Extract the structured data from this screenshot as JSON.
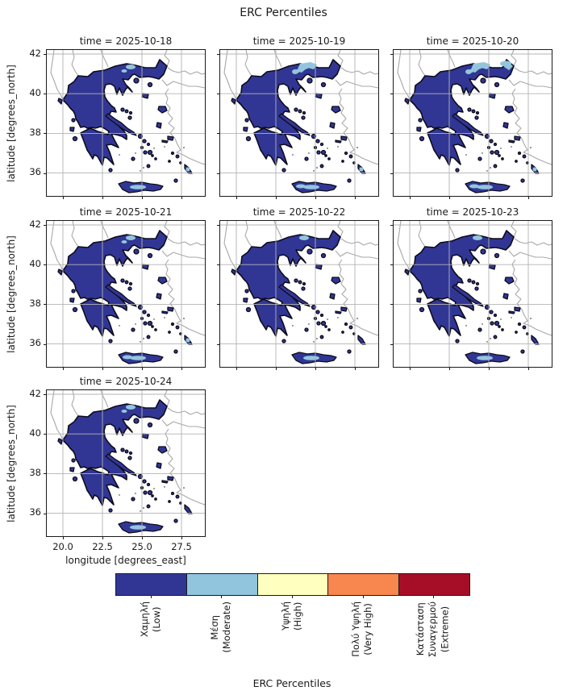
{
  "figure": {
    "title": "ERC Percentiles"
  },
  "axes": {
    "ylabel": "latitude [degrees_north]",
    "xlabel": "longitude [degrees_east]",
    "lat_ticks": [
      "42",
      "40",
      "38",
      "36"
    ],
    "lon_ticks": [
      "20.0",
      "22.5",
      "25.0",
      "27.5"
    ]
  },
  "subplots": [
    {
      "title": "time = 2025-10-18"
    },
    {
      "title": "time = 2025-10-19"
    },
    {
      "title": "time = 2025-10-20"
    },
    {
      "title": "time = 2025-10-21"
    },
    {
      "title": "time = 2025-10-22"
    },
    {
      "title": "time = 2025-10-23"
    },
    {
      "title": "time = 2025-10-24"
    }
  ],
  "colorbar": {
    "label": "ERC Percentiles",
    "classes": [
      {
        "label": "Χαμηλή\n(Low)",
        "color": "#313695"
      },
      {
        "label": "Μέση\n(Moderate)",
        "color": "#90c5dd"
      },
      {
        "label": "Υψηλή\n(High)",
        "color": "#ffffbf"
      },
      {
        "label": "Πολύ Υψηλή\n(Very High)",
        "color": "#f8864f"
      },
      {
        "label": "Κατάσταση\nΣυναγερμού\n(Extreme)",
        "color": "#a50e26"
      }
    ]
  },
  "chart_data": {
    "type": "heatmap",
    "subtype": "categorical_choropleth_map_facets",
    "region": "Greece",
    "title": "ERC Percentiles",
    "facet_variable": "time",
    "facets": [
      "2025-10-18",
      "2025-10-19",
      "2025-10-20",
      "2025-10-21",
      "2025-10-22",
      "2025-10-23",
      "2025-10-24"
    ],
    "grid_layout": {
      "rows": 3,
      "cols": 3,
      "used_panels": 7
    },
    "x": {
      "label": "longitude [degrees_east]",
      "ticks": [
        20.0,
        22.5,
        25.0,
        27.5
      ],
      "range": [
        18.98,
        28.98
      ]
    },
    "y": {
      "label": "latitude [degrees_north]",
      "ticks": [
        42,
        40,
        38,
        36
      ],
      "range": [
        34.85,
        42.2
      ]
    },
    "grid": true,
    "legend": {
      "title": "ERC Percentiles",
      "position": "bottom-horizontal-colorbar",
      "categories": [
        "Χαμηλή (Low)",
        "Μέση (Moderate)",
        "Υψηλή (High)",
        "Πολύ Υψηλή (Very High)",
        "Κατάσταση Συναγερμού (Extreme)"
      ],
      "colors": [
        "#313695",
        "#90c5dd",
        "#ffffbf",
        "#f8864f",
        "#a50e26"
      ]
    },
    "facet_values": [
      {
        "date": "2025-10-18",
        "dominant_class": "Low",
        "classes_visible": [
          "Low",
          "Moderate"
        ],
        "moderate_areas": "small patches in central Macedonia and central Crete"
      },
      {
        "date": "2025-10-19",
        "dominant_class": "Low",
        "classes_visible": [
          "Low",
          "Moderate"
        ],
        "moderate_areas": "larger patches in eastern Macedonia and western/central Crete"
      },
      {
        "date": "2025-10-20",
        "dominant_class": "Low",
        "classes_visible": [
          "Low",
          "Moderate"
        ],
        "moderate_areas": "largest patches across north-east (Macedonia/Thrace) and central Crete"
      },
      {
        "date": "2025-10-21",
        "dominant_class": "Low",
        "classes_visible": [
          "Low",
          "Moderate"
        ],
        "moderate_areas": "small northern patches and central Crete"
      },
      {
        "date": "2025-10-22",
        "dominant_class": "Low",
        "classes_visible": [
          "Low",
          "Moderate"
        ],
        "moderate_areas": "small spots in north and central Crete"
      },
      {
        "date": "2025-10-23",
        "dominant_class": "Low",
        "classes_visible": [
          "Low",
          "Moderate"
        ],
        "moderate_areas": "tiny spots in north and central Crete"
      },
      {
        "date": "2025-10-24",
        "dominant_class": "Low",
        "classes_visible": [
          "Low",
          "Moderate"
        ],
        "moderate_areas": "small northern spots and small Crete patch"
      }
    ]
  }
}
